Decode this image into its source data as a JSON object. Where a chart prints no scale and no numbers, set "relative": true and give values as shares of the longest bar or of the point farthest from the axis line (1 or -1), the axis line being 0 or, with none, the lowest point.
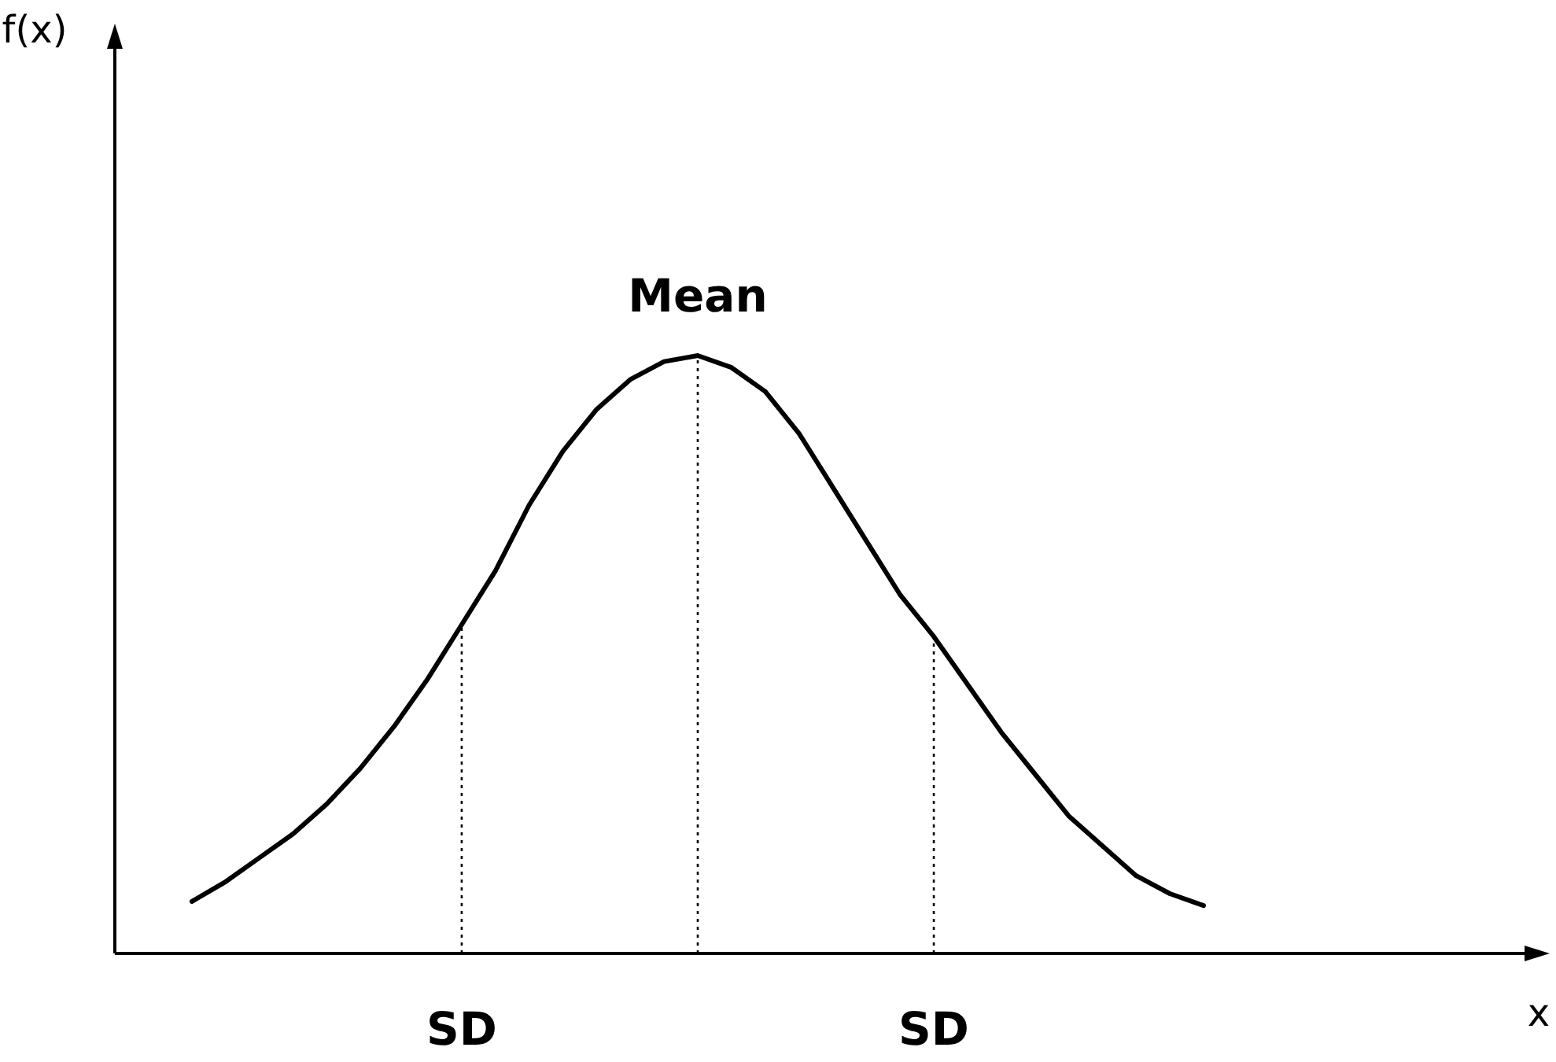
{
  "chart_data": {
    "type": "line",
    "relative": true,
    "annotations": [
      "f(x)",
      "Mean",
      "x"
    ],
    "categories": [
      null,
      null,
      null,
      null,
      null,
      null,
      null,
      null,
      "SD",
      null,
      null,
      null,
      null,
      null,
      null,
      null,
      null,
      null,
      null,
      null,
      null,
      null,
      "SD",
      null,
      null,
      null,
      null,
      null,
      null,
      null,
      null
    ],
    "series": [
      {
        "color": "#000000",
        "values": [
          0.087,
          0.12,
          0.16,
          0.2,
          0.25,
          0.31,
          0.38,
          0.46,
          0.55,
          0.64,
          0.75,
          0.84,
          0.91,
          0.96,
          0.99,
          1.0,
          0.98,
          0.94,
          0.87,
          0.78,
          0.69,
          0.6,
          0.53,
          0.45,
          0.37,
          0.3,
          0.23,
          0.18,
          0.13,
          0.1,
          0.08
        ]
      }
    ],
    "marker": "none",
    "line_style": "solid"
  }
}
